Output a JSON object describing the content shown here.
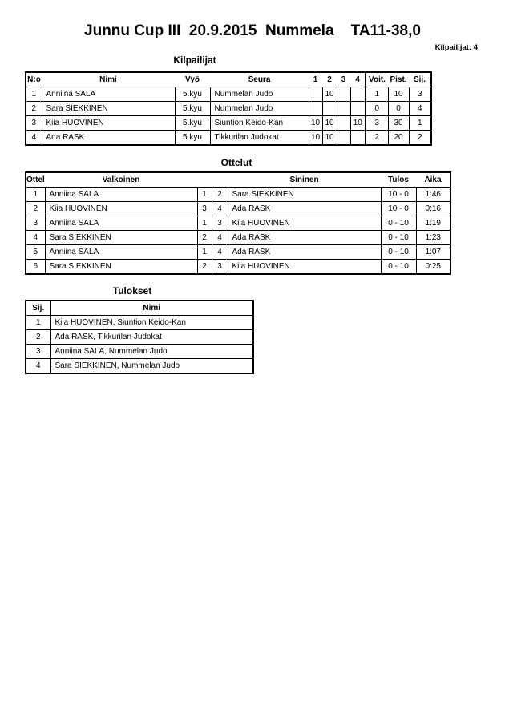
{
  "title": "Junnu Cup III  20.9.2015  Nummela    TA11-38,0",
  "competitor_count": "Kilpailijat: 4",
  "competitors": {
    "heading": "Kilpailijat",
    "columns": [
      "N:o",
      "Nimi",
      "Vyö",
      "Seura",
      "1",
      "2",
      "3",
      "4",
      "Voit.",
      "Pist.",
      "Sij."
    ],
    "rows": [
      [
        "1",
        "Anniina SALA",
        "5.kyu",
        "Nummelan Judo",
        "",
        "10",
        "",
        "",
        "1",
        "10",
        "3"
      ],
      [
        "2",
        "Sara SIEKKINEN",
        "5.kyu",
        "Nummelan Judo",
        "",
        "",
        "",
        "",
        "0",
        "0",
        "4"
      ],
      [
        "3",
        "Kiia HUOVINEN",
        "5.kyu",
        "Siuntion Keido-Kan",
        "10",
        "10",
        "",
        "10",
        "3",
        "30",
        "1"
      ],
      [
        "4",
        "Ada RASK",
        "5.kyu",
        "Tikkurilan Judokat",
        "10",
        "10",
        "",
        "",
        "2",
        "20",
        "2"
      ]
    ]
  },
  "matches": {
    "heading": "Ottelut",
    "columns": [
      "Ottelu",
      "Valkoinen",
      "",
      "",
      "Sininen",
      "Tulos",
      "Aika"
    ],
    "rows": [
      [
        "1",
        "Anniina SALA",
        "1",
        "2",
        "Sara SIEKKINEN",
        "10 - 0",
        "1:46"
      ],
      [
        "2",
        "Kiia HUOVINEN",
        "3",
        "4",
        "Ada RASK",
        "10 - 0",
        "0:16"
      ],
      [
        "3",
        "Anniina SALA",
        "1",
        "3",
        "Kiia HUOVINEN",
        "0 - 10",
        "1:19"
      ],
      [
        "4",
        "Sara SIEKKINEN",
        "2",
        "4",
        "Ada RASK",
        "0 - 10",
        "1:23"
      ],
      [
        "5",
        "Anniina SALA",
        "1",
        "4",
        "Ada RASK",
        "0 - 10",
        "1:07"
      ],
      [
        "6",
        "Sara SIEKKINEN",
        "2",
        "3",
        "Kiia HUOVINEN",
        "0 - 10",
        "0:25"
      ]
    ]
  },
  "results": {
    "heading": "Tulokset",
    "columns": [
      "Sij.",
      "Nimi"
    ],
    "rows": [
      [
        "1",
        "Kiia HUOVINEN, Siuntion Keido-Kan"
      ],
      [
        "2",
        "Ada RASK, Tikkurilan Judokat"
      ],
      [
        "3",
        "Anniina SALA, Nummelan Judo"
      ],
      [
        "4",
        "Sara SIEKKINEN, Nummelan Judo"
      ]
    ]
  }
}
